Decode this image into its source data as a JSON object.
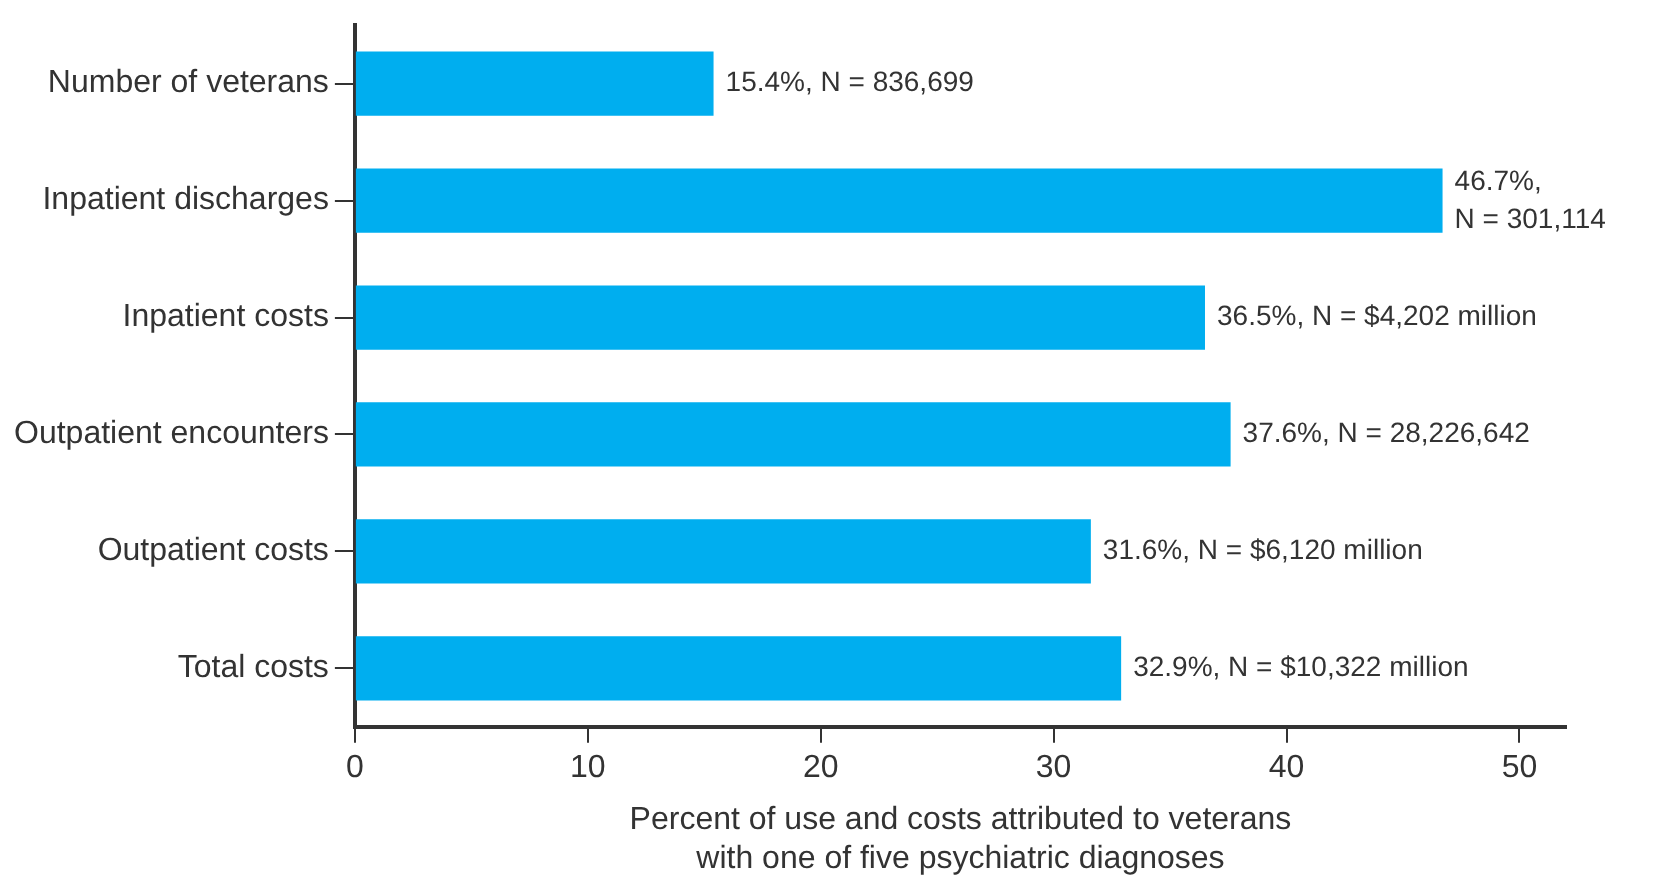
{
  "chart_data": {
    "type": "bar",
    "orientation": "horizontal",
    "xlabel": "Percent of use and costs attributed to veterans\nwith one of five psychiatric diagnoses",
    "categories": [
      "Number of veterans",
      "Inpatient discharges",
      "Inpatient costs",
      "Outpatient encounters",
      "Outpatient costs",
      "Total costs"
    ],
    "values": [
      15.4,
      46.7,
      36.5,
      37.6,
      31.6,
      32.9
    ],
    "value_labels": [
      "15.4%, N = 836,699",
      "46.7%, N = 301,114",
      "36.5%, N = $4,202 million",
      "37.6%, N = 28,226,642",
      "31.6%, N = $6,120 million",
      "32.9%, N = $10,322 million"
    ],
    "color": "#00aeef",
    "xlim": [
      0,
      52
    ],
    "xticks": [
      0,
      10,
      20,
      30,
      40,
      50
    ],
    "grid": false,
    "legend": false
  }
}
